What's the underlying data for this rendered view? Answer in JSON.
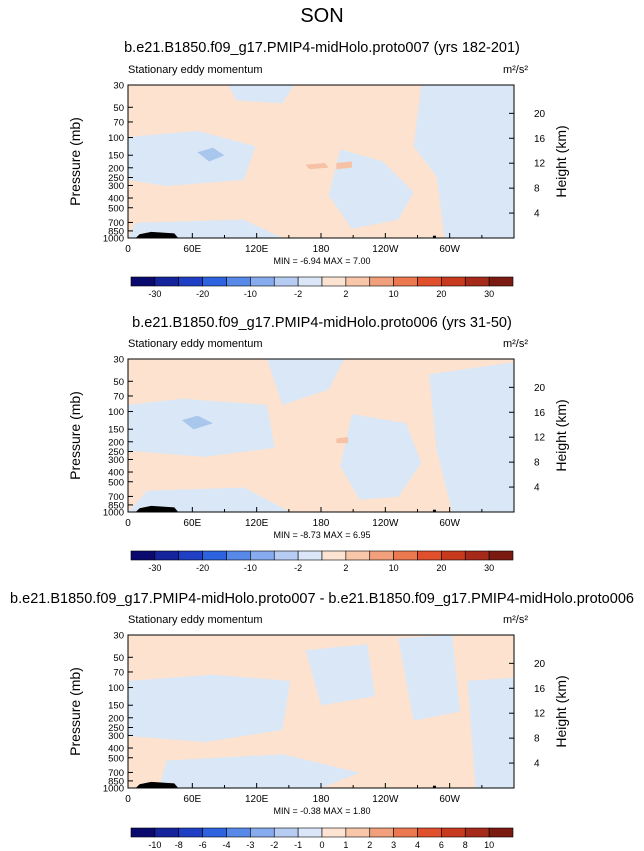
{
  "figure_title": "SON",
  "panels": [
    {
      "title": "b.e21.B1850.f09_g17.PMIP4-midHolo.proto007 (yrs 182-201)",
      "left_label": "Stationary eddy momentum",
      "units": "m²/s²",
      "stats": "MIN =  -6.94   MAX =   7.00",
      "colorbar_labels": [
        "-30",
        "-20",
        "-10",
        "-2",
        "2",
        "10",
        "20",
        "30"
      ]
    },
    {
      "title": "b.e21.B1850.f09_g17.PMIP4-midHolo.proto006 (yrs 31-50)",
      "left_label": "Stationary eddy momentum",
      "units": "m²/s²",
      "stats": "MIN =  -8.73   MAX =   6.95",
      "colorbar_labels": [
        "-30",
        "-20",
        "-10",
        "-2",
        "2",
        "10",
        "20",
        "30"
      ]
    },
    {
      "title": "b.e21.B1850.f09_g17.PMIP4-midHolo.proto007 - b.e21.B1850.f09_g17.PMIP4-midHolo.proto006",
      "left_label": "Stationary eddy momentum",
      "units": "m²/s²",
      "stats": "MIN =  -0.38   MAX =   1.80",
      "colorbar_labels": [
        "-10",
        "-8",
        "-6",
        "-4",
        "-3",
        "-2",
        "-1",
        "0",
        "1",
        "2",
        "3",
        "4",
        "6",
        "8",
        "10"
      ]
    }
  ],
  "chart_data": [
    {
      "type": "heatmap",
      "title": "b.e21.B1850.f09_g17.PMIP4-midHolo.proto007 (yrs 182-201)",
      "xlabel": "",
      "ylabel": "Pressure (mb)",
      "y2label": "Height (km)",
      "x_ticks": [
        "0",
        "60E",
        "120E",
        "180",
        "120W",
        "60W"
      ],
      "y_ticks": [
        30,
        50,
        70,
        100,
        150,
        200,
        250,
        300,
        400,
        500,
        700,
        850,
        1000
      ],
      "y2_ticks": [
        4,
        8,
        12,
        16,
        20
      ],
      "y_scale": "log-pressure",
      "min": -6.94,
      "max": 7.0,
      "colorbar_levels": [
        -30,
        -20,
        -10,
        -2,
        2,
        10,
        20,
        30
      ]
    },
    {
      "type": "heatmap",
      "title": "b.e21.B1850.f09_g17.PMIP4-midHolo.proto006 (yrs 31-50)",
      "xlabel": "",
      "ylabel": "Pressure (mb)",
      "y2label": "Height (km)",
      "x_ticks": [
        "0",
        "60E",
        "120E",
        "180",
        "120W",
        "60W"
      ],
      "y_ticks": [
        30,
        50,
        70,
        100,
        150,
        200,
        250,
        300,
        400,
        500,
        700,
        850,
        1000
      ],
      "y2_ticks": [
        4,
        8,
        12,
        16,
        20
      ],
      "y_scale": "log-pressure",
      "min": -8.73,
      "max": 6.95,
      "colorbar_levels": [
        -30,
        -20,
        -10,
        -2,
        2,
        10,
        20,
        30
      ]
    },
    {
      "type": "heatmap",
      "title": "b.e21.B1850.f09_g17.PMIP4-midHolo.proto007 - b.e21.B1850.f09_g17.PMIP4-midHolo.proto006",
      "xlabel": "",
      "ylabel": "Pressure (mb)",
      "y2label": "Height (km)",
      "x_ticks": [
        "0",
        "60E",
        "120E",
        "180",
        "120W",
        "60W"
      ],
      "y_ticks": [
        30,
        50,
        70,
        100,
        150,
        200,
        250,
        300,
        400,
        500,
        700,
        850,
        1000
      ],
      "y2_ticks": [
        4,
        8,
        12,
        16,
        20
      ],
      "y_scale": "log-pressure",
      "min": -0.38,
      "max": 1.8,
      "colorbar_levels": [
        -10,
        -8,
        -6,
        -4,
        -3,
        -2,
        -1,
        0,
        1,
        2,
        3,
        4,
        6,
        8,
        10
      ]
    }
  ],
  "colors": {
    "pos_fill": "#fde3cf",
    "neg_fill": "#d9e7f7",
    "neg_mid": "#a9c6ec",
    "pos_mid": "#f6c1a4",
    "cbar16": [
      "#0a0a6e",
      "#15249c",
      "#1f3fc4",
      "#2e63e0",
      "#5689e8",
      "#86abee",
      "#b6ccf3",
      "#dbe6f8",
      "#fde4d2",
      "#f8c6a8",
      "#f2a07c",
      "#ec7850",
      "#e0502c",
      "#c73a1e",
      "#a52a1a",
      "#7a1a10"
    ],
    "cbar8": [
      "#0a0a6e",
      "#1f3fc4",
      "#5689e8",
      "#b6ccf3",
      "#fde4d2",
      "#f2a07c",
      "#e0502c",
      "#7a1a10"
    ]
  }
}
